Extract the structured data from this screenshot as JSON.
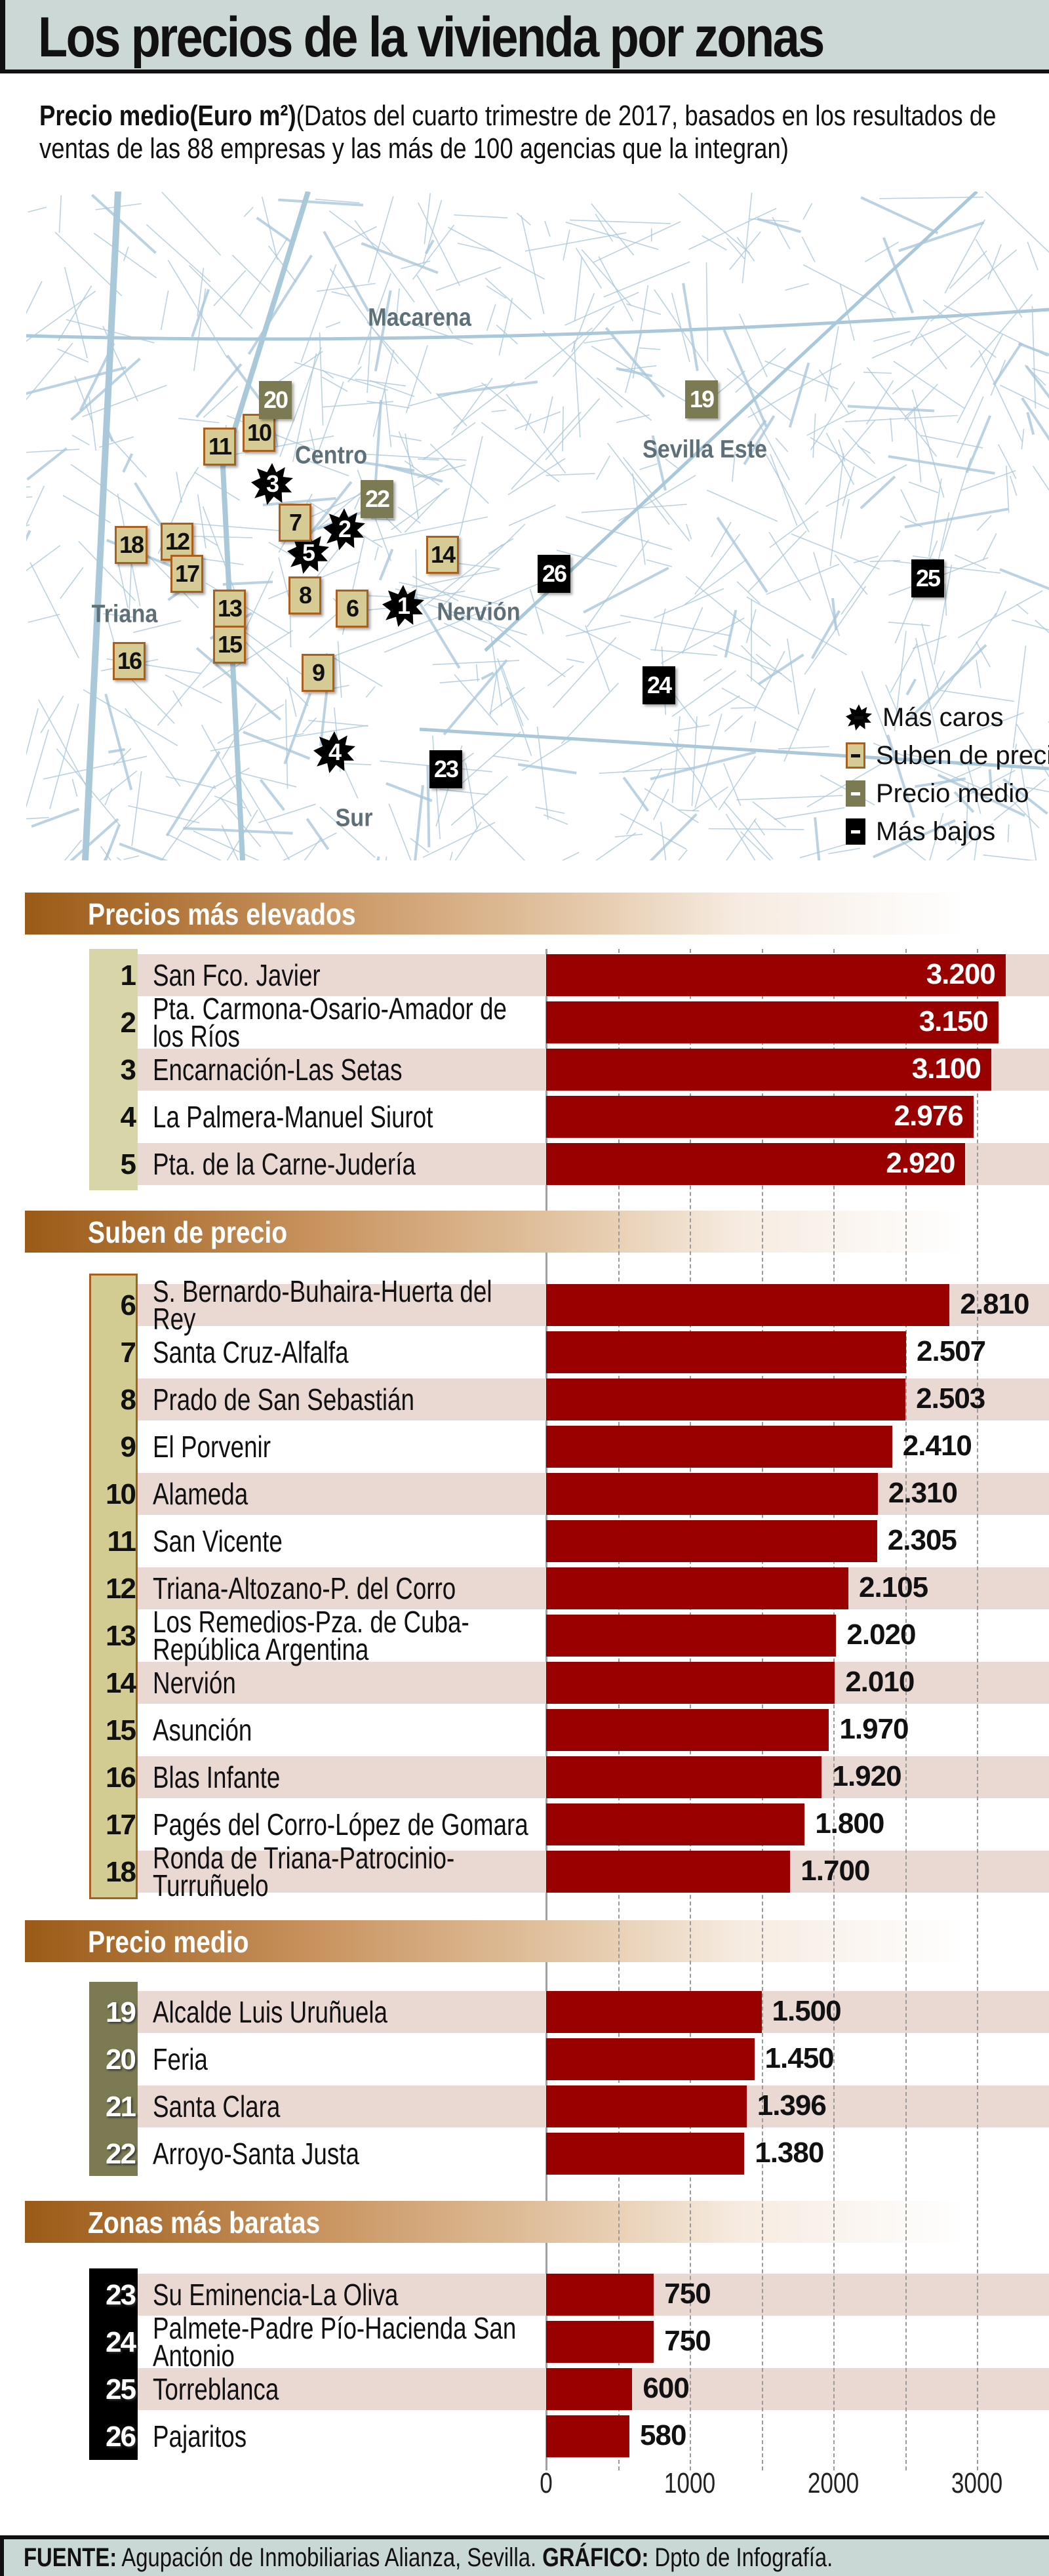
{
  "header": {
    "title": "Los precios de la vivienda por zonas"
  },
  "subtitle": {
    "bold": "Precio medio(Euro m²)",
    "text": "(Datos del cuarto trimestre de 2017, basados en los resultados de ventas de las 88 empresas y las más de 100 agencias que la integran)"
  },
  "map": {
    "area_labels": [
      "Macarena",
      "Centro",
      "Sevilla Este",
      "Triana",
      "Nervión",
      "Sur"
    ],
    "markers": [
      {
        "n": "1",
        "type": "caro"
      },
      {
        "n": "2",
        "type": "caro"
      },
      {
        "n": "3",
        "type": "caro"
      },
      {
        "n": "4",
        "type": "caro"
      },
      {
        "n": "5",
        "type": "caro"
      },
      {
        "n": "6",
        "type": "sube"
      },
      {
        "n": "7",
        "type": "sube"
      },
      {
        "n": "8",
        "type": "sube"
      },
      {
        "n": "9",
        "type": "sube"
      },
      {
        "n": "10",
        "type": "sube"
      },
      {
        "n": "11",
        "type": "sube"
      },
      {
        "n": "12",
        "type": "sube"
      },
      {
        "n": "13",
        "type": "sube"
      },
      {
        "n": "14",
        "type": "sube"
      },
      {
        "n": "15",
        "type": "sube"
      },
      {
        "n": "16",
        "type": "sube"
      },
      {
        "n": "17",
        "type": "sube"
      },
      {
        "n": "18",
        "type": "sube"
      },
      {
        "n": "19",
        "type": "medio"
      },
      {
        "n": "20",
        "type": "medio"
      },
      {
        "n": "22",
        "type": "medio"
      },
      {
        "n": "23",
        "type": "bajo"
      },
      {
        "n": "24",
        "type": "bajo"
      },
      {
        "n": "25",
        "type": "bajo"
      },
      {
        "n": "26",
        "type": "bajo"
      }
    ],
    "legend": [
      {
        "label": "Más caros",
        "type": "caro"
      },
      {
        "label": "Suben de precio",
        "type": "sube"
      },
      {
        "label": "Precio medio",
        "type": "medio"
      },
      {
        "label": "Más bajos",
        "type": "bajo"
      }
    ],
    "colors": {
      "sube": "#d6cb94",
      "medio": "#7b7a52",
      "bajo": "#000000",
      "caro": "#000000",
      "streets": "#a9c8da"
    }
  },
  "chart_data": {
    "type": "bar",
    "orientation": "horizontal",
    "unit": "Euro m²",
    "xlim": [
      0,
      3200
    ],
    "x_ticks": [
      "0",
      "1000",
      "2000",
      "3000"
    ],
    "grid": true,
    "bar_color": "#990000",
    "sections": [
      {
        "title": "Precios más elevados",
        "type": "caro",
        "rows": [
          {
            "n": "1",
            "label": "San Fco. Javier",
            "value": 3200,
            "display": "3.200"
          },
          {
            "n": "2",
            "label": "Pta. Carmona-Osario-Amador de los Ríos",
            "value": 3150,
            "display": "3.150"
          },
          {
            "n": "3",
            "label": "Encarnación-Las Setas",
            "value": 3100,
            "display": "3.100"
          },
          {
            "n": "4",
            "label": "La Palmera-Manuel Siurot",
            "value": 2976,
            "display": "2.976"
          },
          {
            "n": "5",
            "label": "Pta. de la Carne-Judería",
            "value": 2920,
            "display": "2.920"
          }
        ]
      },
      {
        "title": "Suben de precio",
        "type": "sube",
        "rows": [
          {
            "n": "6",
            "label": "S. Bernardo-Buhaira-Huerta del Rey",
            "value": 2810,
            "display": "2.810"
          },
          {
            "n": "7",
            "label": "Santa Cruz-Alfalfa",
            "value": 2507,
            "display": "2.507"
          },
          {
            "n": "8",
            "label": "Prado de San Sebastián",
            "value": 2503,
            "display": "2.503"
          },
          {
            "n": "9",
            "label": "El Porvenir",
            "value": 2410,
            "display": "2.410"
          },
          {
            "n": "10",
            "label": "Alameda",
            "value": 2310,
            "display": "2.310"
          },
          {
            "n": "11",
            "label": "San Vicente",
            "value": 2305,
            "display": "2.305"
          },
          {
            "n": "12",
            "label": "Triana-Altozano-P. del Corro",
            "value": 2105,
            "display": "2.105"
          },
          {
            "n": "13",
            "label": "Los Remedios-Pza. de Cuba-República Argentina",
            "value": 2020,
            "display": "2.020"
          },
          {
            "n": "14",
            "label": "Nervión",
            "value": 2010,
            "display": "2.010"
          },
          {
            "n": "15",
            "label": "Asunción",
            "value": 1970,
            "display": "1.970"
          },
          {
            "n": "16",
            "label": "Blas Infante",
            "value": 1920,
            "display": "1.920"
          },
          {
            "n": "17",
            "label": "Pagés del Corro-López de Gomara",
            "value": 1800,
            "display": "1.800"
          },
          {
            "n": "18",
            "label": "Ronda de Triana-Patrocinio-Turruñuelo",
            "value": 1700,
            "display": "1.700"
          }
        ]
      },
      {
        "title": "Precio medio",
        "type": "medio",
        "rows": [
          {
            "n": "19",
            "label": "Alcalde Luis Uruñuela",
            "value": 1500,
            "display": "1.500"
          },
          {
            "n": "20",
            "label": "Feria",
            "value": 1450,
            "display": "1.450"
          },
          {
            "n": "21",
            "label": "Santa Clara",
            "value": 1396,
            "display": "1.396"
          },
          {
            "n": "22",
            "label": "Arroyo-Santa Justa",
            "value": 1380,
            "display": "1.380"
          }
        ]
      },
      {
        "title": "Zonas más baratas",
        "type": "bajo",
        "rows": [
          {
            "n": "23",
            "label": "Su Eminencia-La Oliva",
            "value": 750,
            "display": "750"
          },
          {
            "n": "24",
            "label": "Palmete-Padre Pío-Hacienda San Antonio",
            "value": 750,
            "display": "750"
          },
          {
            "n": "25",
            "label": "Torreblanca",
            "value": 600,
            "display": "600"
          },
          {
            "n": "26",
            "label": "Pajaritos",
            "value": 580,
            "display": "580"
          }
        ]
      }
    ]
  },
  "footer": {
    "source_label": "FUENTE:",
    "source": "Agupación de Inmobiliarias Alianza, Sevilla.",
    "graphic_label": "GRÁFICO:",
    "graphic": "Dpto de Infografía."
  }
}
